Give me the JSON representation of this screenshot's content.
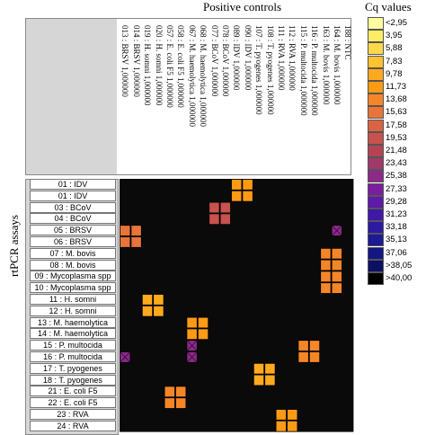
{
  "titles": {
    "columns": "Positive controls",
    "rows": "rtPCR assays",
    "legend": "Cq values"
  },
  "colors": {
    "background_cell": "#0a0a0a",
    "header_grey": "#d6d6d6"
  },
  "legend": [
    {
      "label": "<2,95",
      "color": "#ffffa0"
    },
    {
      "label": "3,95",
      "color": "#ffec64"
    },
    {
      "label": "5,88",
      "color": "#ffd84a"
    },
    {
      "label": "7,83",
      "color": "#ffc230"
    },
    {
      "label": "9,78",
      "color": "#ffaa1e"
    },
    {
      "label": "11,73",
      "color": "#ff9a14"
    },
    {
      "label": "13,68",
      "color": "#f58628"
    },
    {
      "label": "15,63",
      "color": "#e8743a"
    },
    {
      "label": "17,58",
      "color": "#d86444"
    },
    {
      "label": "19,53",
      "color": "#c8524c"
    },
    {
      "label": "21,48",
      "color": "#b44454"
    },
    {
      "label": "23,43",
      "color": "#a03a6a"
    },
    {
      "label": "25,38",
      "color": "#8c2a88"
    },
    {
      "label": "27,33",
      "color": "#7a1ea0"
    },
    {
      "label": "29,28",
      "color": "#5e1aa8"
    },
    {
      "label": "31,23",
      "color": "#4018a8"
    },
    {
      "label": "33,18",
      "color": "#2c1aa0"
    },
    {
      "label": "35,13",
      "color": "#1c1a94"
    },
    {
      "label": "37,06",
      "color": "#141684"
    },
    {
      "label": ">38,05",
      "color": "#0c1064"
    },
    {
      "label": ">40,00",
      "color": "#000000"
    }
  ],
  "chart_data": {
    "type": "heatmap",
    "columns": [
      "013 : BRSV 1,000000",
      "014 : BRSV 1,000000",
      "019 : H. somni 1,000000",
      "020 : H. somni 1,000000",
      "057 : E. coli F5 1,000000",
      "058 : E. coli F5 1,000000",
      "067 : M. haemolytica 1,000000",
      "068 : M. haemolytica 1,000000",
      "077 : BCoV 1,000000",
      "078 : BCoV 1,000000",
      "089 : IDV 1,000000",
      "090 : IDV 1,000000",
      "107 : T. pyogenes 1,000000",
      "108 : T. pyogenes 1,000000",
      "111 : RVA 1,000000",
      "112 : RVA 1,000000",
      "115 : P. multocida 1,000000",
      "116 : P. multocida 1,000000",
      "163 : M. bovis 1,000000",
      "164 : M. bovis 1,000000",
      "188 : NTC"
    ],
    "rows": [
      "01 : IDV",
      "01 : IDV",
      "03 : BCoV",
      "04 : BCoV",
      "05 : BRSV",
      "06 : BRSV",
      "07 : M. bovis",
      "08 : M. bovis",
      "09 : Mycoplasma spp",
      "10 : Mycoplasma spp",
      "11 : H. somni",
      "12 : H. somni",
      "13 : M. haemolytica",
      "14 : M. haemolytica",
      "15 : P. multocida",
      "16 : P. multocida",
      "17 : T. pyogenes",
      "18 : T. pyogenes",
      "21 : E. coli F5",
      "22 : E. coli F5",
      "23 : RVA",
      "24 : RVA"
    ],
    "default_bin": 20,
    "cells": [
      {
        "row": 0,
        "col": 10,
        "bin": 5
      },
      {
        "row": 0,
        "col": 11,
        "bin": 5
      },
      {
        "row": 1,
        "col": 10,
        "bin": 5
      },
      {
        "row": 1,
        "col": 11,
        "bin": 5
      },
      {
        "row": 2,
        "col": 8,
        "bin": 9
      },
      {
        "row": 2,
        "col": 9,
        "bin": 9
      },
      {
        "row": 3,
        "col": 8,
        "bin": 9
      },
      {
        "row": 3,
        "col": 9,
        "bin": 9
      },
      {
        "row": 4,
        "col": 0,
        "bin": 7
      },
      {
        "row": 4,
        "col": 1,
        "bin": 7
      },
      {
        "row": 4,
        "col": 19,
        "bin": 12,
        "cross": true
      },
      {
        "row": 5,
        "col": 0,
        "bin": 7
      },
      {
        "row": 5,
        "col": 1,
        "bin": 7
      },
      {
        "row": 6,
        "col": 18,
        "bin": 6
      },
      {
        "row": 6,
        "col": 19,
        "bin": 6
      },
      {
        "row": 7,
        "col": 18,
        "bin": 6
      },
      {
        "row": 7,
        "col": 19,
        "bin": 6
      },
      {
        "row": 8,
        "col": 18,
        "bin": 6
      },
      {
        "row": 8,
        "col": 19,
        "bin": 6
      },
      {
        "row": 9,
        "col": 18,
        "bin": 6
      },
      {
        "row": 9,
        "col": 19,
        "bin": 6
      },
      {
        "row": 10,
        "col": 2,
        "bin": 4
      },
      {
        "row": 10,
        "col": 3,
        "bin": 4
      },
      {
        "row": 11,
        "col": 2,
        "bin": 4
      },
      {
        "row": 11,
        "col": 3,
        "bin": 4
      },
      {
        "row": 12,
        "col": 6,
        "bin": 5
      },
      {
        "row": 12,
        "col": 7,
        "bin": 5
      },
      {
        "row": 13,
        "col": 6,
        "bin": 5
      },
      {
        "row": 13,
        "col": 7,
        "bin": 5
      },
      {
        "row": 14,
        "col": 6,
        "bin": 12,
        "cross": true
      },
      {
        "row": 14,
        "col": 16,
        "bin": 6
      },
      {
        "row": 14,
        "col": 17,
        "bin": 6
      },
      {
        "row": 15,
        "col": 0,
        "bin": 12,
        "cross": true
      },
      {
        "row": 15,
        "col": 6,
        "bin": 12,
        "cross": true
      },
      {
        "row": 15,
        "col": 16,
        "bin": 6
      },
      {
        "row": 15,
        "col": 17,
        "bin": 6
      },
      {
        "row": 16,
        "col": 12,
        "bin": 4
      },
      {
        "row": 16,
        "col": 13,
        "bin": 4
      },
      {
        "row": 17,
        "col": 12,
        "bin": 4
      },
      {
        "row": 17,
        "col": 13,
        "bin": 4
      },
      {
        "row": 18,
        "col": 4,
        "bin": 6
      },
      {
        "row": 18,
        "col": 5,
        "bin": 6
      },
      {
        "row": 19,
        "col": 4,
        "bin": 6
      },
      {
        "row": 19,
        "col": 5,
        "bin": 6
      },
      {
        "row": 20,
        "col": 14,
        "bin": 5
      },
      {
        "row": 20,
        "col": 15,
        "bin": 5
      },
      {
        "row": 21,
        "col": 14,
        "bin": 5
      },
      {
        "row": 21,
        "col": 15,
        "bin": 5
      }
    ]
  }
}
